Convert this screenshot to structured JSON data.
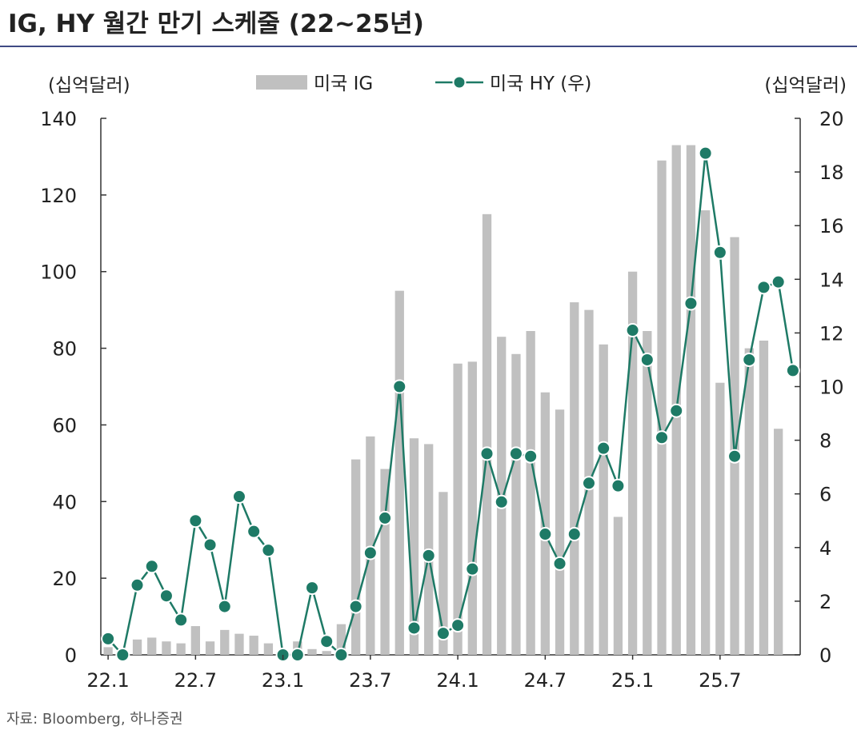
{
  "title": "IG, HY 월간 만기 스케줄 (22~25년)",
  "source": "자료: Bloomberg, 하나증권",
  "colors": {
    "bar": "#c0c0c0",
    "line": "#1e7a66",
    "title_rule": "#3f4a84",
    "axis": "#333333"
  },
  "chart_data": {
    "type": "bar+line",
    "title": "IG, HY 월간 만기 스케줄 (22~25년)",
    "left_axis": {
      "unit_label": "(십억달러)",
      "ylim": [
        0,
        140
      ],
      "ticks": [
        "0",
        "20",
        "40",
        "60",
        "80",
        "100",
        "120",
        "140"
      ]
    },
    "right_axis": {
      "unit_label": "(십억달러)",
      "ylim": [
        0,
        20
      ],
      "ticks": [
        "0",
        "2",
        "4",
        "6",
        "8",
        "10",
        "12",
        "14",
        "16",
        "18",
        "20"
      ]
    },
    "x_tick_labels": [
      "22.1",
      "22.7",
      "23.1",
      "23.7",
      "24.1",
      "24.7",
      "25.1",
      "25.7"
    ],
    "x_tick_month_index": [
      0,
      6,
      12,
      18,
      24,
      30,
      36,
      42
    ],
    "months": [
      "22.1",
      "22.2",
      "22.3",
      "22.4",
      "22.5",
      "22.6",
      "22.7",
      "22.8",
      "22.9",
      "22.10",
      "22.11",
      "22.12",
      "23.1",
      "23.2",
      "23.3",
      "23.4",
      "23.5",
      "23.6",
      "23.7",
      "23.8",
      "23.9",
      "23.10",
      "23.11",
      "23.12",
      "24.1",
      "24.2",
      "24.3",
      "24.4",
      "24.5",
      "24.6",
      "24.7",
      "24.8",
      "24.9",
      "24.10",
      "24.11",
      "24.12",
      "25.1",
      "25.2",
      "25.3",
      "25.4",
      "25.5",
      "25.6",
      "25.7",
      "25.8",
      "25.9",
      "25.10",
      "25.11",
      "25.12"
    ],
    "series": [
      {
        "name": "미국 IG",
        "type": "bar",
        "axis": "left",
        "values": [
          2,
          1,
          4,
          4.5,
          3.5,
          3,
          7.5,
          3.5,
          6.5,
          5.5,
          5,
          3,
          1,
          3.5,
          1.5,
          1,
          8,
          51,
          57,
          48.5,
          95,
          56.5,
          55,
          42.5,
          76,
          76.5,
          115,
          83,
          78.5,
          84.5,
          68.5,
          64,
          92,
          90,
          81,
          36,
          100,
          84.5,
          129,
          133,
          133,
          116,
          71,
          109,
          80,
          82,
          59,
          0
        ]
      },
      {
        "name": "미국 HY (우)",
        "type": "line",
        "axis": "right",
        "values": [
          0.6,
          0,
          2.6,
          3.3,
          2.2,
          1.3,
          5,
          4.1,
          1.8,
          5.9,
          4.6,
          3.9,
          0,
          0,
          2.5,
          0.5,
          0,
          1.8,
          3.8,
          5.1,
          10,
          1,
          3.7,
          0.8,
          1.1,
          3.2,
          7.5,
          5.7,
          7.5,
          7.4,
          4.5,
          3.4,
          4.5,
          6.4,
          7.7,
          6.3,
          12.1,
          11,
          8.1,
          9.1,
          13.1,
          18.7,
          15,
          7.4,
          11,
          13.7,
          13.9,
          10.6
        ]
      }
    ]
  }
}
